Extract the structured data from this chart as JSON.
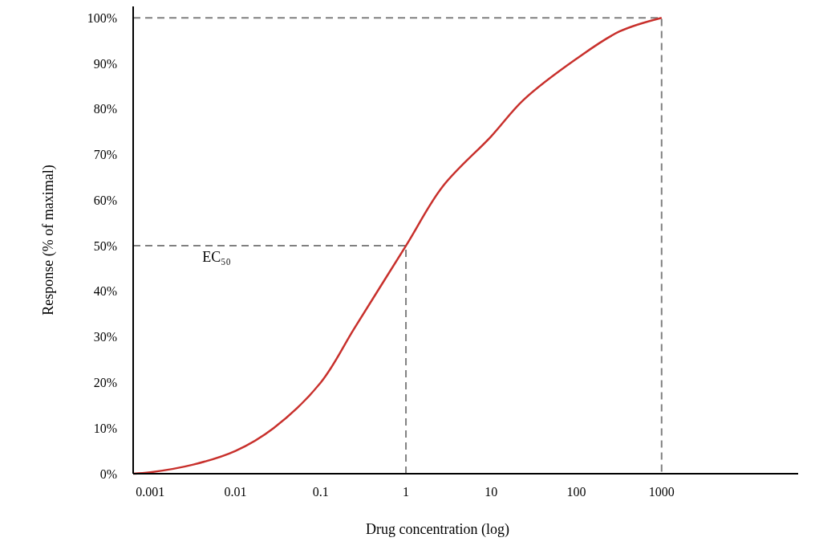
{
  "chart_data": {
    "type": "line",
    "xlabel": "Drug concentration (log)",
    "ylabel": "Response (% of maximal)",
    "log": "x",
    "xlim": [
      0.00063,
      40000
    ],
    "xticks": [
      0.001,
      0.01,
      0.1,
      1,
      10,
      100,
      1000
    ],
    "ylim": [
      0,
      102.5
    ],
    "yticks": [
      {
        "value": 0,
        "label": "0%"
      },
      {
        "value": 10,
        "label": "10%"
      },
      {
        "value": 20,
        "label": "20%"
      },
      {
        "value": 30,
        "label": "30%"
      },
      {
        "value": 40,
        "label": "40%"
      },
      {
        "value": 50,
        "label": "50%"
      },
      {
        "value": 60,
        "label": "60%"
      },
      {
        "value": 70,
        "label": "70%"
      },
      {
        "value": 80,
        "label": "80%"
      },
      {
        "value": 90,
        "label": "90%"
      },
      {
        "value": 100,
        "label": "100%"
      }
    ],
    "grid": false,
    "series": [
      {
        "color": "#c8302c",
        "line_style": "solid",
        "x": [
          0.00063,
          0.001,
          0.0032,
          0.01,
          0.028,
          0.1,
          0.25,
          1,
          2.7,
          10,
          24,
          100,
          320,
          1000
        ],
        "values": [
          0,
          0.3,
          2,
          5,
          10,
          20,
          32,
          50,
          63,
          74,
          82,
          91,
          97,
          100
        ]
      },
      {
        "color": "#808080",
        "line_style": "dashed",
        "x": [
          0.00063,
          1,
          1
        ],
        "values": [
          50,
          50,
          0
        ]
      },
      {
        "color": "#808080",
        "line_style": "dashed",
        "x": [
          0.00063,
          1000,
          1000
        ],
        "values": [
          100,
          100,
          0
        ]
      }
    ],
    "annotations": [
      {
        "text": "EC₅₀",
        "x": 0.006,
        "y": 50
      }
    ]
  }
}
